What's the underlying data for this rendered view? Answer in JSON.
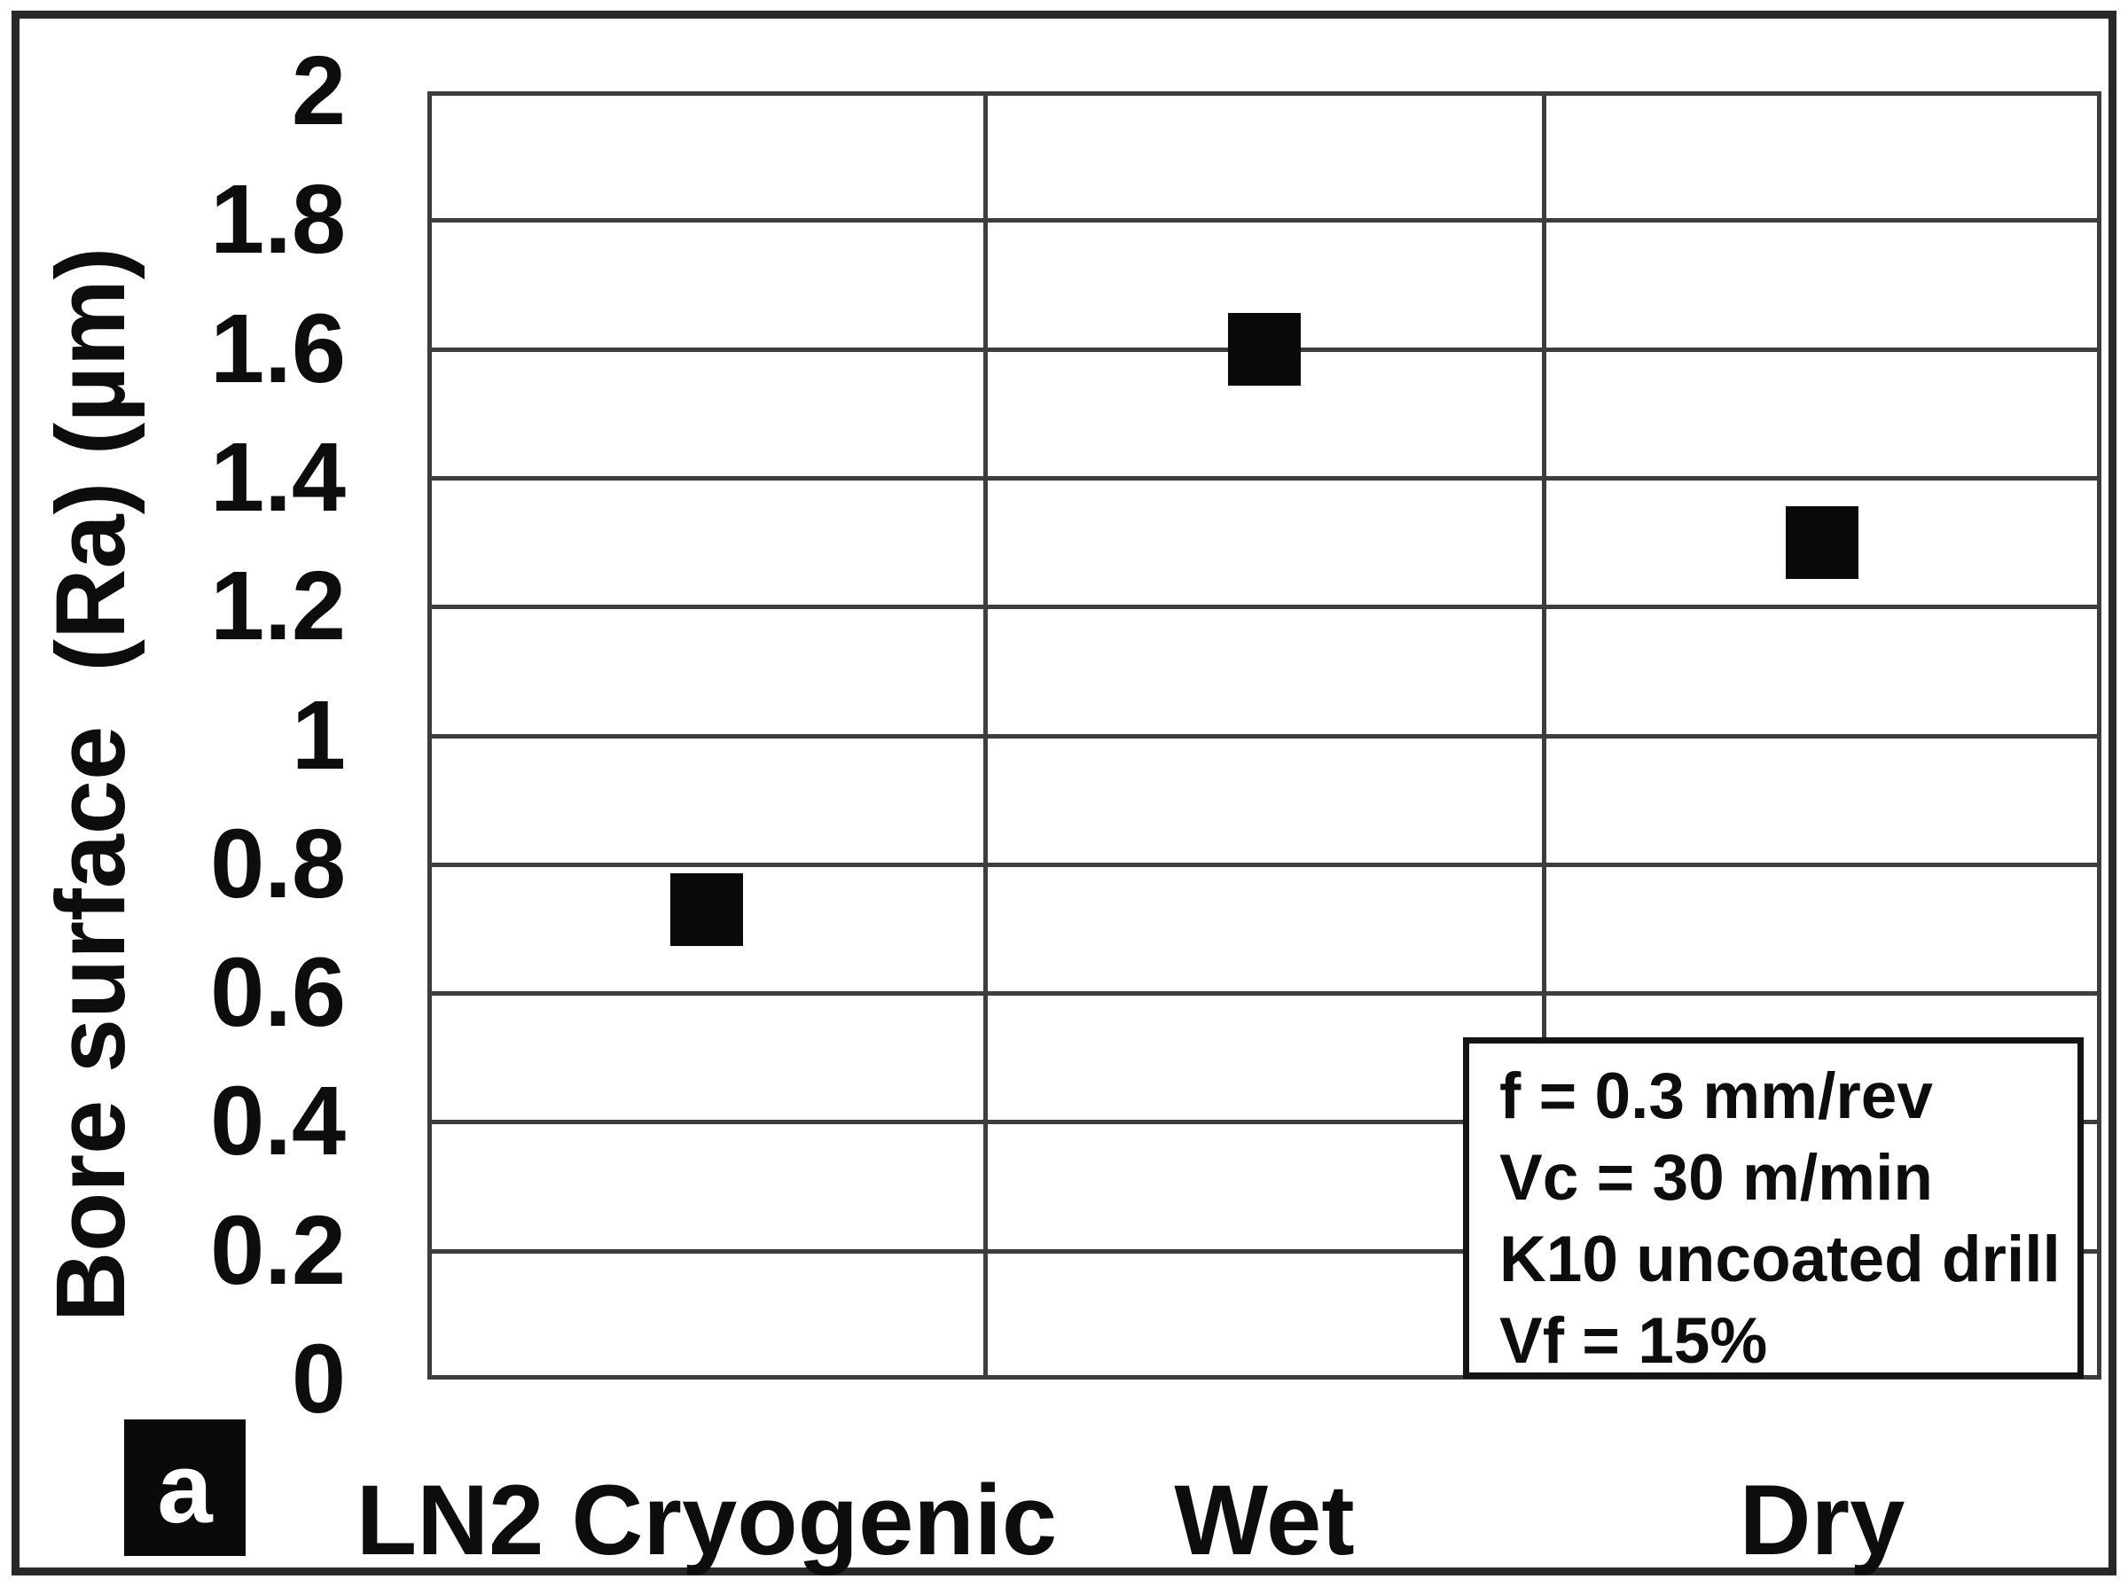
{
  "figure": {
    "panel_label": "a",
    "colors": {
      "gridline": "#3d3d3d",
      "outer_frame": "#282828",
      "marker": "#0a0a0a",
      "text": "#0d0d0d",
      "background": "#ffffff",
      "panel_label_bg": "#0a0a0a",
      "panel_label_text": "#ffffff"
    }
  },
  "chart_data": {
    "type": "scatter",
    "title": "",
    "categories": [
      "LN2 Cryogenic",
      "Wet",
      "Dry"
    ],
    "series": [
      {
        "name": "Bore surface roughness (Ra)",
        "values": [
          0.73,
          1.6,
          1.3
        ]
      }
    ],
    "marker": "filled-black-square",
    "xlabel": "",
    "ylabel": "Bore surface  (Ra) (µm)",
    "ylim": [
      0,
      2
    ],
    "ytick_step": 0.2,
    "yticks": [
      "2",
      "1.8",
      "1.6",
      "1.4",
      "1.2",
      "1",
      "0.8",
      "0.6",
      "0.4",
      "0.2",
      "0"
    ],
    "grid": "horizontal lines every 0.2; vertical category divider lines; full plot border",
    "legend": "none",
    "annotation": {
      "lines": [
        "f = 0.3 mm/rev",
        "Vc = 30 m/min",
        "K10 uncoated drill",
        "Vf = 15%"
      ]
    }
  }
}
